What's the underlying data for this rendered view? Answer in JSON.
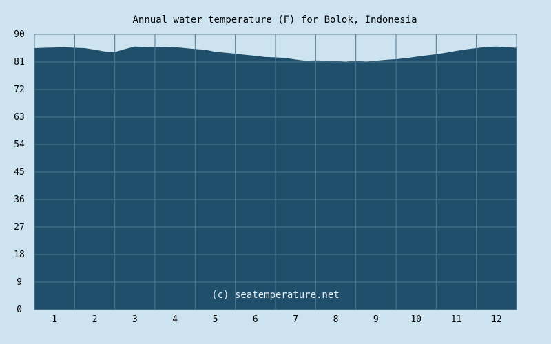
{
  "chart_data": {
    "type": "area",
    "title": "Annual water temperature (F) for Bolok, Indonesia",
    "xlabel": "",
    "ylabel": "",
    "ylim": [
      0,
      90
    ],
    "xlim": [
      0.5,
      12.5
    ],
    "y_ticks": [
      "0",
      "9",
      "18",
      "27",
      "36",
      "45",
      "54",
      "63",
      "72",
      "81",
      "90"
    ],
    "x_ticks": [
      "1",
      "2",
      "3",
      "4",
      "5",
      "6",
      "7",
      "8",
      "9",
      "10",
      "11",
      "12"
    ],
    "grid": true,
    "annotation": "(c) seatemperature.net",
    "colors": {
      "fill": "#1f4f6b",
      "grid": "#4d7790",
      "background": "#cde3ef",
      "axis": "#5a7f95"
    },
    "x": [
      0.5,
      0.75,
      1.0,
      1.25,
      1.5,
      1.75,
      2.0,
      2.25,
      2.5,
      2.75,
      3.0,
      3.25,
      3.5,
      3.75,
      4.0,
      4.25,
      4.5,
      4.75,
      5.0,
      5.25,
      5.5,
      5.75,
      6.0,
      6.25,
      6.5,
      6.75,
      7.0,
      7.25,
      7.5,
      7.75,
      8.0,
      8.25,
      8.5,
      8.75,
      9.0,
      9.25,
      9.5,
      9.75,
      10.0,
      10.25,
      10.5,
      10.75,
      11.0,
      11.25,
      11.5,
      11.75,
      12.0,
      12.25,
      12.5
    ],
    "values": [
      85.5,
      85.6,
      85.7,
      85.8,
      85.6,
      85.5,
      85.0,
      84.4,
      84.2,
      85.2,
      86.0,
      85.9,
      85.8,
      85.9,
      85.8,
      85.5,
      85.2,
      85.0,
      84.3,
      84.0,
      83.7,
      83.3,
      83.0,
      82.6,
      82.5,
      82.3,
      81.8,
      81.4,
      81.5,
      81.4,
      81.3,
      81.1,
      81.4,
      81.1,
      81.4,
      81.7,
      81.9,
      82.2,
      82.7,
      83.1,
      83.5,
      84.0,
      84.6,
      85.1,
      85.5,
      85.9,
      86.0,
      85.8,
      85.6
    ]
  }
}
